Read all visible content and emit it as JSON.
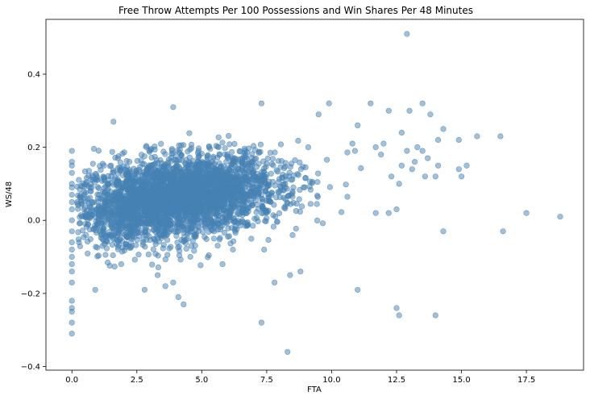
{
  "chart_data": {
    "type": "scatter",
    "title": "Free Throw Attempts Per 100 Possessions and Win Shares Per 48 Minutes",
    "xlabel": "FTA",
    "ylabel": "WS/48",
    "xlim": [
      -1.0,
      19.7
    ],
    "ylim": [
      -0.41,
      0.55
    ],
    "xticks": [
      0.0,
      2.5,
      5.0,
      7.5,
      10.0,
      12.5,
      15.0,
      17.5
    ],
    "xtick_labels": [
      "0.0",
      "2.5",
      "5.0",
      "7.5",
      "10.0",
      "12.5",
      "15.0",
      "17.5"
    ],
    "yticks": [
      -0.4,
      -0.2,
      0.0,
      0.2,
      0.4
    ],
    "ytick_labels": [
      "−0.4",
      "−0.2",
      "0.0",
      "0.2",
      "0.4"
    ],
    "grid": false,
    "legend": "none",
    "marker_color": "#4682b4",
    "marker_alpha": 0.5,
    "series": [
      {
        "x": [
          12.9,
          3.9,
          7.3,
          9.9,
          11.5,
          13.5,
          12.2,
          13.8,
          9.5,
          13.0,
          11.0,
          12.7,
          16.5,
          15.6,
          10.8,
          9.1,
          1.6,
          14.3,
          13.3,
          14.1,
          14.9,
          15.0,
          17.5,
          18.8,
          16.6,
          14.3,
          12.5,
          12.2,
          11.7,
          12.6,
          12.3,
          11.0,
          8.3,
          7.3,
          8.4,
          8.8,
          7.8,
          7.4,
          5.8,
          6.2,
          4.3,
          4.1,
          3.9,
          3.6,
          3.3,
          2.8,
          1.9,
          0.9,
          0.0,
          0.0,
          0.0,
          0.0,
          0.0,
          0.0,
          12.5,
          12.6,
          14.0,
          0.0,
          0.0,
          0.0,
          0.0,
          0.0,
          0.0,
          0.0,
          0.0,
          0.0,
          0.0,
          0.0,
          0.0,
          0.0,
          0.0,
          0.0,
          0.0,
          0.2,
          10.9,
          11.9,
          11.7,
          12.0,
          12.9,
          13.5,
          13.1,
          13.2,
          12.7,
          14.1,
          14.0,
          13.7,
          14.9,
          15.2,
          13.6
        ],
        "y": [
          0.51,
          0.31,
          0.32,
          0.32,
          0.32,
          0.32,
          0.3,
          0.29,
          0.29,
          0.3,
          0.26,
          0.24,
          0.23,
          0.23,
          0.21,
          0.2,
          0.27,
          0.25,
          0.2,
          0.22,
          0.22,
          0.12,
          0.02,
          0.01,
          -0.03,
          -0.03,
          0.03,
          0.02,
          0.02,
          0.1,
          0.12,
          -0.19,
          -0.36,
          -0.28,
          -0.15,
          -0.14,
          -0.17,
          -0.08,
          -0.12,
          -0.08,
          -0.23,
          -0.21,
          -0.17,
          -0.18,
          -0.15,
          -0.19,
          -0.12,
          -0.19,
          -0.31,
          -0.28,
          -0.25,
          -0.24,
          -0.22,
          -0.17,
          -0.24,
          -0.26,
          -0.26,
          0.19,
          0.16,
          0.15,
          0.13,
          0.1,
          0.09,
          0.07,
          0.05,
          0.03,
          0.0,
          -0.03,
          -0.06,
          -0.08,
          -0.1,
          -0.12,
          -0.14,
          0.05,
          0.19,
          0.18,
          0.2,
          0.21,
          0.19,
          0.19,
          0.14,
          0.16,
          0.15,
          0.15,
          0.12,
          0.17,
          0.14,
          0.15,
          0.12
        ]
      }
    ],
    "dense_cluster": {
      "x_mean": 4.0,
      "x_sd": 2.0,
      "y_mean": 0.06,
      "y_sd": 0.055,
      "x_min": 0.2,
      "x_max": 11.5,
      "y_min": -0.14,
      "y_max": 0.24,
      "slope": 0.009,
      "count": 3400
    }
  }
}
